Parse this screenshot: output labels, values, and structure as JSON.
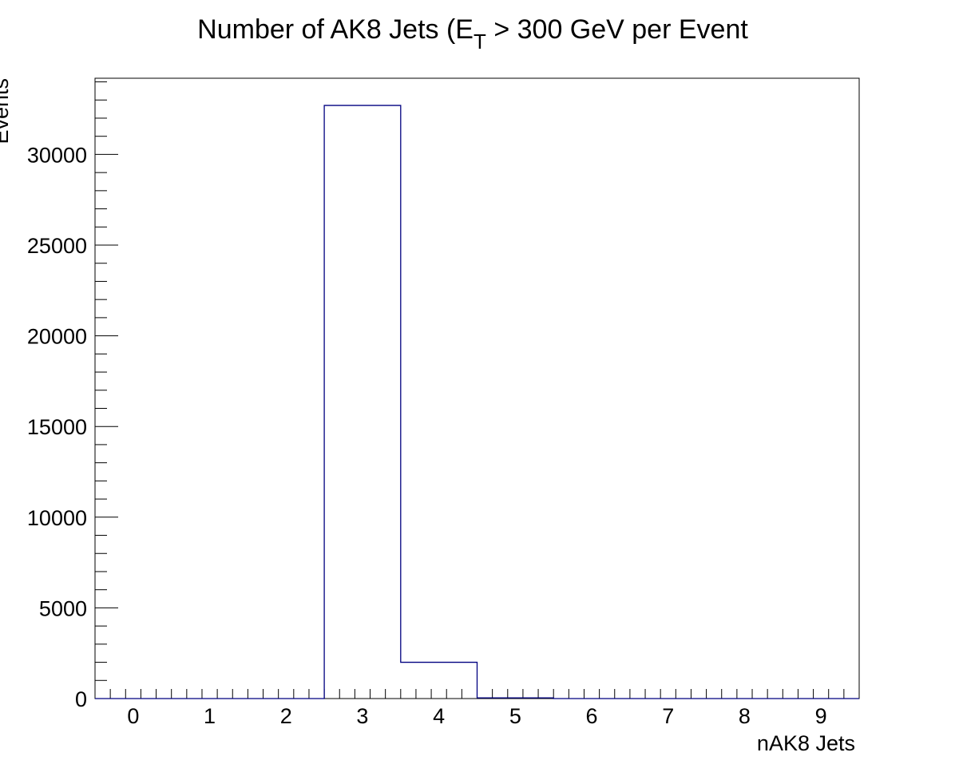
{
  "chart_data": {
    "type": "bar",
    "title_main": "Number of AK8 Jets (E",
    "title_sub": "T",
    "title_rest": " > 300 GeV per Event",
    "xlabel": "nAK8 Jets",
    "ylabel": "Events",
    "xlim": [
      -0.5,
      9.5
    ],
    "ylim": [
      0,
      34200
    ],
    "bin_edges": [
      -0.5,
      0.5,
      1.5,
      2.5,
      3.5,
      4.5,
      5.5,
      6.5,
      7.5,
      8.5,
      9.5
    ],
    "values": [
      0,
      0,
      0,
      32700,
      2000,
      40,
      0,
      0,
      0,
      0
    ],
    "x_ticks": [
      "0",
      "1",
      "2",
      "3",
      "4",
      "5",
      "6",
      "7",
      "8",
      "9"
    ],
    "y_ticks": [
      "0",
      "5000",
      "10000",
      "15000",
      "20000",
      "25000",
      "30000"
    ],
    "y_tick_values": [
      0,
      5000,
      10000,
      15000,
      20000,
      25000,
      30000
    ],
    "line_color": "#000080",
    "grid": false,
    "legend": "none"
  }
}
